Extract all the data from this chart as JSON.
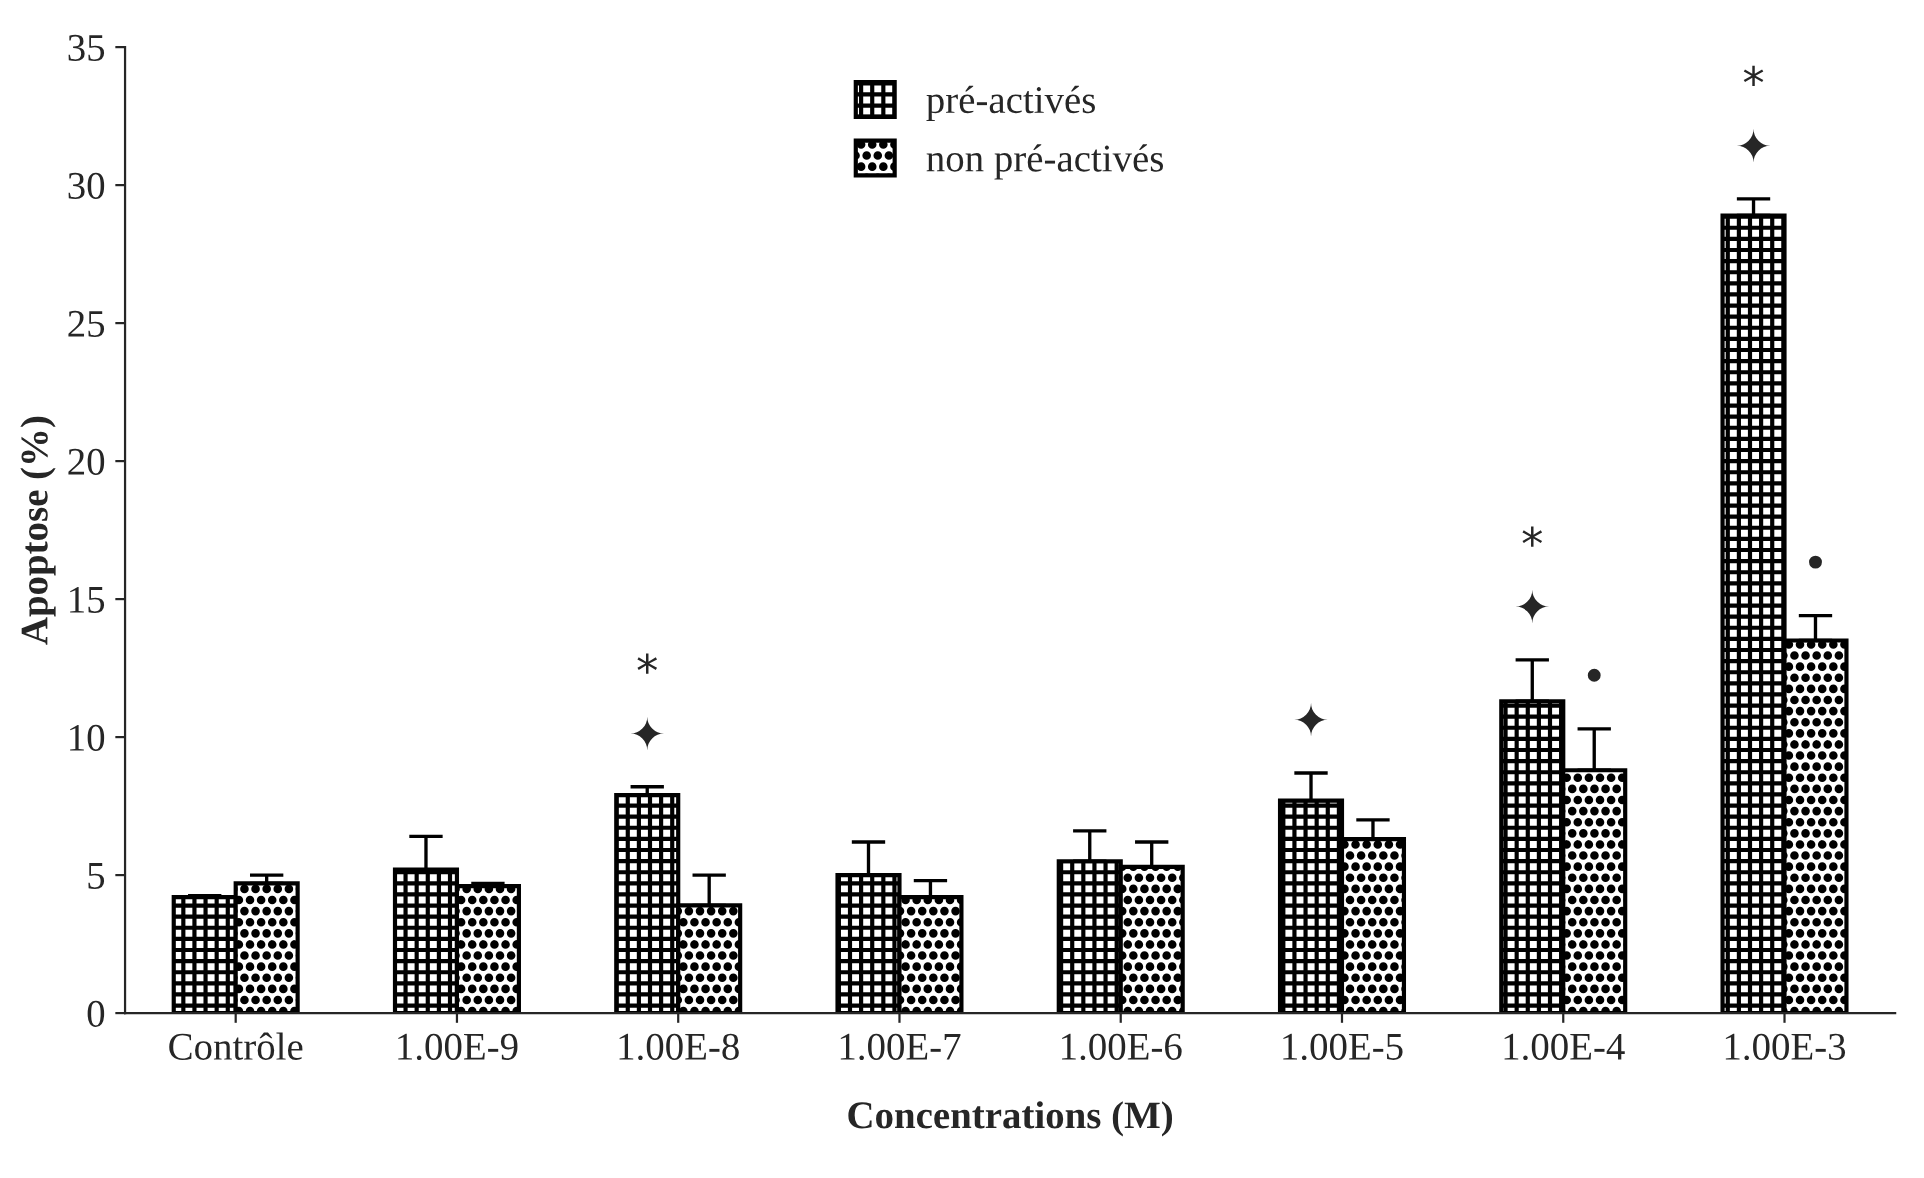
{
  "chart_data": {
    "type": "bar",
    "xlabel": "Concentrations (M)",
    "ylabel": "Apoptose (%)",
    "categories": [
      "Contrôle",
      "1.00E-9",
      "1.00E-8",
      "1.00E-7",
      "1.00E-6",
      "1.00E-5",
      "1.00E-4",
      "1.00E-3"
    ],
    "series": [
      {
        "name": "pré-activés",
        "color": "#000000",
        "values": [
          4.2,
          5.2,
          7.9,
          5.0,
          5.5,
          7.7,
          11.3,
          28.9
        ],
        "errors": [
          0.05,
          1.2,
          0.3,
          1.2,
          1.1,
          1.0,
          1.5,
          0.6
        ],
        "value_labels": [
          null,
          null,
          "*\n✦",
          null,
          null,
          "✦",
          "*\n✦",
          "*\n✦"
        ]
      },
      {
        "name": "non pré-activés",
        "color": "#000000",
        "values": [
          4.7,
          4.6,
          3.9,
          4.2,
          5.3,
          6.3,
          8.8,
          13.5
        ],
        "errors": [
          0.3,
          0.1,
          1.1,
          0.6,
          0.9,
          0.7,
          1.5,
          0.9
        ],
        "value_labels": [
          null,
          null,
          null,
          null,
          null,
          null,
          "•",
          "•"
        ]
      }
    ],
    "ylim": [
      0,
      35
    ],
    "yticks": [
      0,
      5,
      10,
      15,
      20,
      25,
      30,
      35
    ],
    "grid": false,
    "legend": "top"
  }
}
